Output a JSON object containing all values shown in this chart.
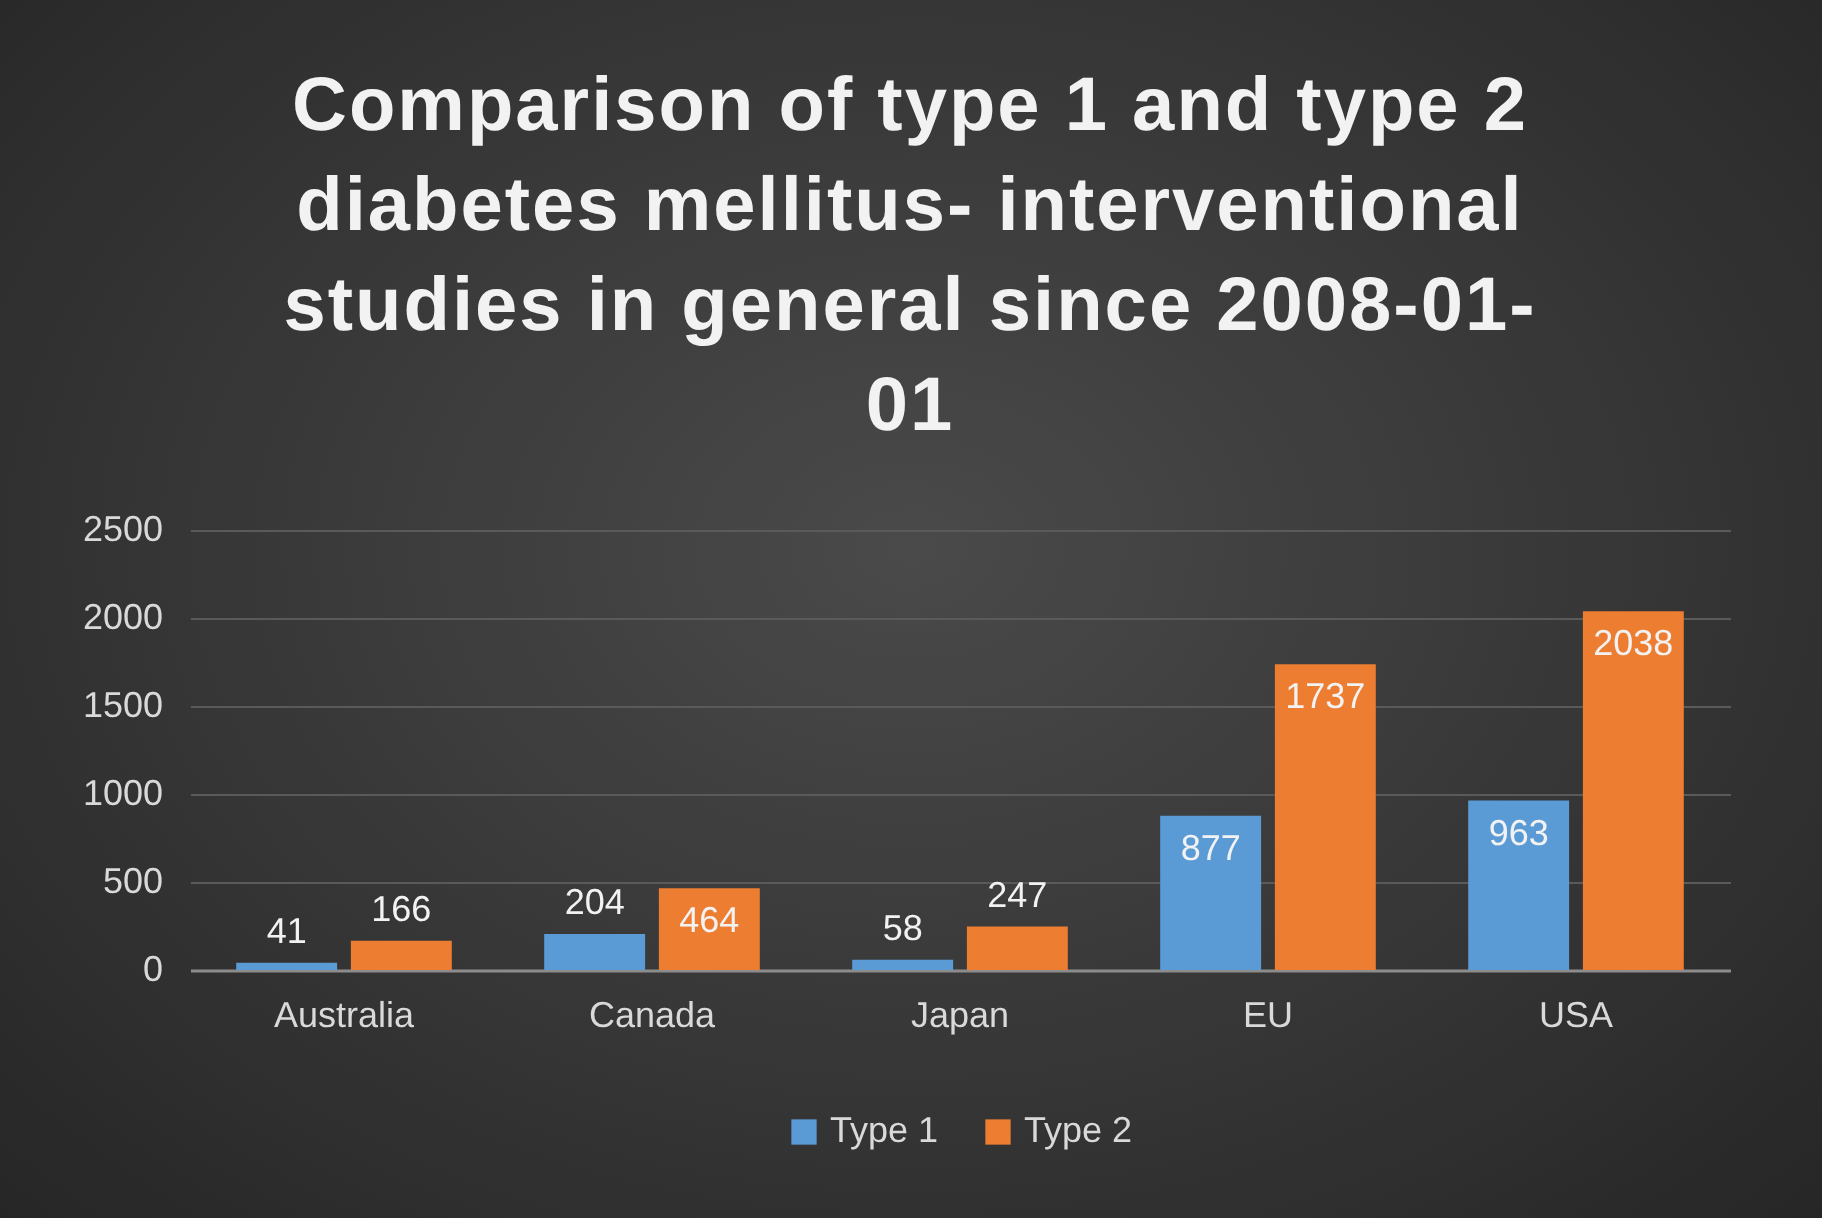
{
  "chart_data": {
    "type": "bar",
    "title": "Comparison of type 1 and type 2 diabetes mellitus- interventional studies in general since 2008-01-01",
    "categories": [
      "Australia",
      "Canada",
      "Japan",
      "EU",
      "USA"
    ],
    "series": [
      {
        "name": "Type 1",
        "color": "#5b9bd5",
        "values": [
          41,
          204,
          58,
          877,
          963
        ]
      },
      {
        "name": "Type 2",
        "color": "#ed7d31",
        "values": [
          166,
          464,
          247,
          1737,
          2038
        ]
      }
    ],
    "ylim": [
      0,
      2500
    ],
    "yticks": [
      0,
      500,
      1000,
      1500,
      2000,
      2500
    ],
    "grid": "y",
    "legend": "bottom",
    "data_labels": true
  }
}
